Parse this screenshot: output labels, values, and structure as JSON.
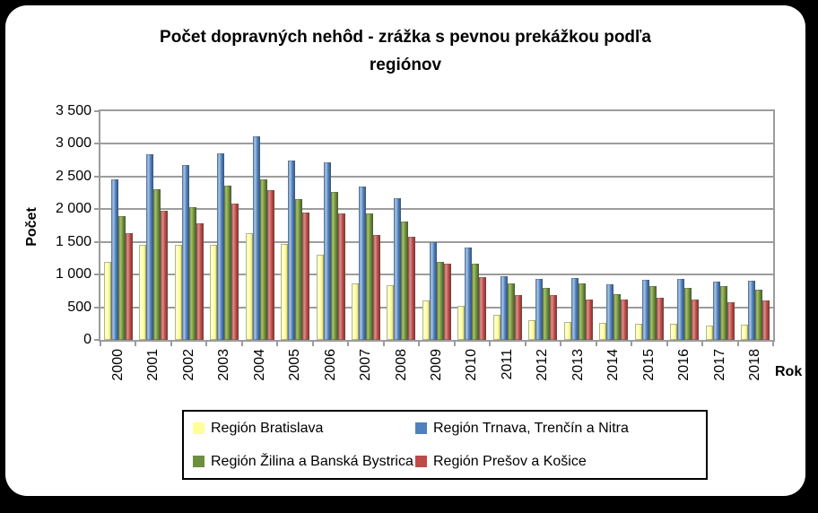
{
  "accent_colors": {
    "frame": "#000000",
    "background": "#ffffff",
    "grid": "#9c9c9c"
  },
  "chart_data": {
    "type": "bar",
    "title": "Počet dopravných nehôd - zrážka s pevnou prekážkou podľa regiónov",
    "ylabel": "Počet",
    "xlabel": "Rok",
    "ylim": [
      0,
      3500
    ],
    "ytick_step": 500,
    "ytick_labels": [
      "0",
      "500",
      "1 000",
      "1 500",
      "2 000",
      "2 500",
      "3 000",
      "3 500"
    ],
    "grid": true,
    "legend_position": "bottom",
    "categories": [
      "2000",
      "2001",
      "2002",
      "2003",
      "2004",
      "2005",
      "2006",
      "2007",
      "2008",
      "2009",
      "2010",
      "2011",
      "2012",
      "2013",
      "2014",
      "2015",
      "2016",
      "2017",
      "2018"
    ],
    "series": [
      {
        "name": "Región Bratislava",
        "color": "#FFFF99",
        "color_light": "#FFFFD9",
        "color_dark": "#CFCF6E",
        "values": [
          1190,
          1460,
          1450,
          1460,
          1640,
          1470,
          1300,
          860,
          840,
          600,
          520,
          390,
          300,
          270,
          260,
          250,
          250,
          220,
          230
        ]
      },
      {
        "name": "Región Trnava, Trenčín a Nitra",
        "color": "#4E81BD",
        "color_light": "#A9C4E5",
        "color_dark": "#2D5282",
        "values": [
          2460,
          2840,
          2670,
          2850,
          3110,
          2750,
          2720,
          2350,
          2170,
          1500,
          1410,
          970,
          930,
          950,
          850,
          920,
          930,
          890,
          900
        ]
      },
      {
        "name": "Región Žilina a Banská Bystrica",
        "color": "#6E8F3E",
        "color_light": "#A5C163",
        "color_dark": "#42591F",
        "values": [
          1890,
          2300,
          2030,
          2360,
          2460,
          2160,
          2270,
          1930,
          1810,
          1190,
          1160,
          860,
          790,
          860,
          700,
          820,
          790,
          830,
          770
        ]
      },
      {
        "name": "Región Prešov a Košice",
        "color": "#BE4B48",
        "color_light": "#D98F8C",
        "color_dark": "#7E2D27",
        "values": [
          1640,
          1970,
          1790,
          2080,
          2290,
          1950,
          1930,
          1600,
          1580,
          1160,
          960,
          690,
          680,
          620,
          620,
          640,
          620,
          570,
          600
        ]
      }
    ]
  }
}
